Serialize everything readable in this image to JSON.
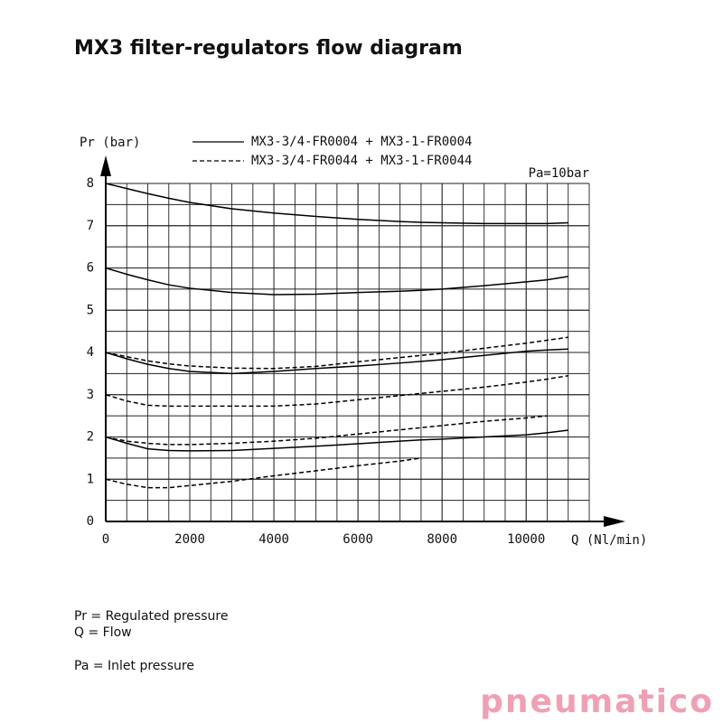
{
  "chart_data": {
    "type": "line",
    "title": "MX3 filter-regulators flow diagram",
    "y_label": "Pr (bar)",
    "x_label": "Q (Nl/min)",
    "annotation": "Pa=10bar",
    "legend": [
      {
        "label": "MX3-3/4-FR0004 + MX3-1-FR0004",
        "dash": false
      },
      {
        "label": "MX3-3/4-FR0044 + MX3-1-FR0044",
        "dash": true
      }
    ],
    "x": [
      0,
      500,
      1000,
      1500,
      2000,
      3000,
      4000,
      5000,
      6000,
      7000,
      7500,
      8000,
      9000,
      10000,
      10500,
      11000
    ],
    "series": [
      {
        "legend": 0,
        "color": "#000000",
        "values": [
          8.0,
          7.88,
          7.76,
          7.65,
          7.55,
          7.4,
          7.3,
          7.22,
          7.15,
          7.1,
          7.08,
          7.07,
          7.05,
          7.05,
          7.05,
          7.07
        ]
      },
      {
        "legend": 0,
        "color": "#000000",
        "values": [
          6.0,
          5.85,
          5.72,
          5.6,
          5.52,
          5.42,
          5.37,
          5.38,
          5.42,
          5.45,
          5.47,
          5.5,
          5.58,
          5.67,
          5.72,
          5.8
        ]
      },
      {
        "legend": 1,
        "color": "#000000",
        "values": [
          4.0,
          3.9,
          3.8,
          3.73,
          3.68,
          3.63,
          3.62,
          3.67,
          3.78,
          3.88,
          3.93,
          3.98,
          4.1,
          4.22,
          4.29,
          4.36
        ]
      },
      {
        "legend": 0,
        "color": "#000000",
        "values": [
          4.0,
          3.85,
          3.72,
          3.62,
          3.55,
          3.5,
          3.55,
          3.62,
          3.68,
          3.75,
          3.79,
          3.83,
          3.93,
          4.03,
          4.06,
          4.08
        ]
      },
      {
        "legend": 1,
        "color": "#000000",
        "values": [
          3.0,
          2.85,
          2.75,
          2.73,
          2.73,
          2.73,
          2.73,
          2.78,
          2.88,
          2.98,
          3.03,
          3.08,
          3.18,
          3.3,
          3.37,
          3.45
        ]
      },
      {
        "legend": 1,
        "color": "#000000",
        "values": [
          2.0,
          1.9,
          1.85,
          1.82,
          1.82,
          1.85,
          1.9,
          1.97,
          2.07,
          2.17,
          2.22,
          2.27,
          2.37,
          2.45,
          2.5,
          null
        ]
      },
      {
        "legend": 0,
        "color": "#000000",
        "values": [
          2.0,
          1.85,
          1.72,
          1.68,
          1.67,
          1.68,
          1.73,
          1.78,
          1.84,
          1.9,
          1.93,
          1.95,
          2.0,
          2.05,
          2.1,
          2.16
        ]
      },
      {
        "legend": 1,
        "color": "#000000",
        "values": [
          1.0,
          0.88,
          0.8,
          0.8,
          0.85,
          0.95,
          1.08,
          1.2,
          1.32,
          1.43,
          1.5,
          null,
          null,
          null,
          null,
          null
        ]
      }
    ],
    "xlim": [
      0,
      11500
    ],
    "ylim": [
      0,
      8
    ],
    "xticks": [
      0,
      2000,
      4000,
      6000,
      8000,
      10000
    ],
    "yticks": [
      0,
      1,
      2,
      3,
      4,
      5,
      6,
      7,
      8
    ],
    "grid": true
  },
  "notes": [
    "Pr = Regulated pressure",
    "Q = Flow",
    "Pa = Inlet pressure"
  ],
  "logo": "pneumatico"
}
